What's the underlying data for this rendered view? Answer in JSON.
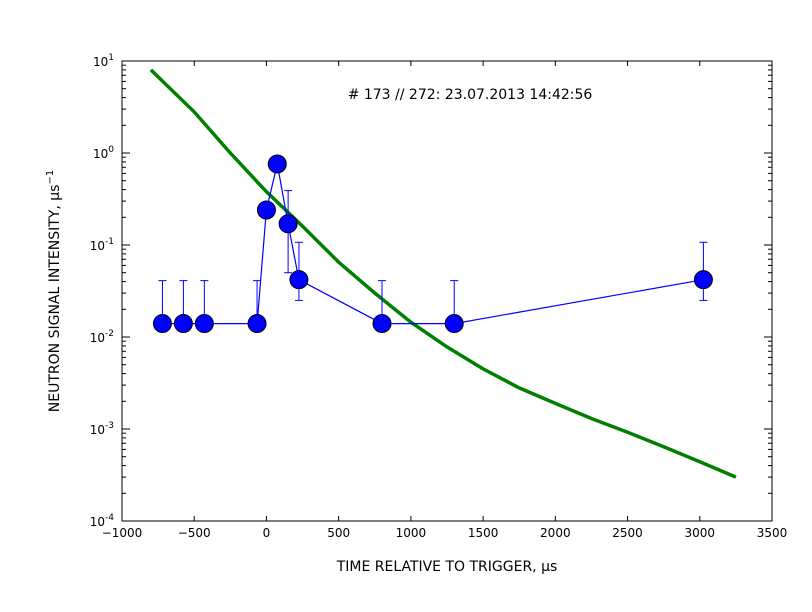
{
  "chart_data": {
    "type": "scatter",
    "xlabel": "TIME RELATIVE TO TRIGGER, μs",
    "ylabel": "NEUTRON SIGNAL INTENSITY, μs",
    "ylabel_exponent": "−1",
    "annotation": "# 173 // 272: 23.07.2013 14:42:56",
    "xlim": [
      -1000,
      3500
    ],
    "ylim": [
      0.0001,
      10
    ],
    "yscale": "log",
    "grid": false,
    "xticks": [
      -1000,
      -500,
      0,
      500,
      1000,
      1500,
      2000,
      2500,
      3000,
      3500
    ],
    "xtick_labels": [
      "−1000",
      "−500",
      "0",
      "500",
      "1000",
      "1500",
      "2000",
      "2500",
      "3000",
      "3500"
    ],
    "yticks": [
      {
        "value": 10,
        "base": "10",
        "exp": "1"
      },
      {
        "value": 1,
        "base": "10",
        "exp": "0"
      },
      {
        "value": 0.1,
        "base": "10",
        "exp": "-1"
      },
      {
        "value": 0.01,
        "base": "10",
        "exp": "-2"
      },
      {
        "value": 0.001,
        "base": "10",
        "exp": "-3"
      },
      {
        "value": 0.0001,
        "base": "10",
        "exp": "-4"
      }
    ],
    "series": [
      {
        "kind": "data-with-errorbars",
        "color": "#0000ff",
        "x": [
          -720,
          -575,
          -430,
          -65,
          0,
          75,
          150,
          225,
          800,
          1300,
          3025
        ],
        "y": [
          0.014,
          0.014,
          0.014,
          0.014,
          0.24,
          0.76,
          0.17,
          0.042,
          0.014,
          0.014,
          0.042
        ],
        "y_err_low": [
          0.0007,
          0.0007,
          0.0007,
          0.0007,
          0.24,
          0.76,
          0.12,
          0.017,
          0.0007,
          0.0007,
          0.017
        ],
        "y_err_high": [
          0.027,
          0.027,
          0.027,
          0.027,
          0.24,
          0.76,
          0.22,
          0.065,
          0.027,
          0.027,
          0.065
        ]
      },
      {
        "kind": "fit-curve",
        "color": "#008000",
        "x": [
          -800,
          -500,
          -250,
          0,
          250,
          500,
          750,
          1000,
          1250,
          1500,
          1750,
          2000,
          2250,
          2500,
          2750,
          3000,
          3250
        ],
        "y": [
          8.0,
          2.8,
          1.0,
          0.38,
          0.16,
          0.065,
          0.03,
          0.0145,
          0.0078,
          0.0045,
          0.0028,
          0.0019,
          0.0013,
          0.00092,
          0.00064,
          0.00044,
          0.0003
        ]
      }
    ]
  }
}
